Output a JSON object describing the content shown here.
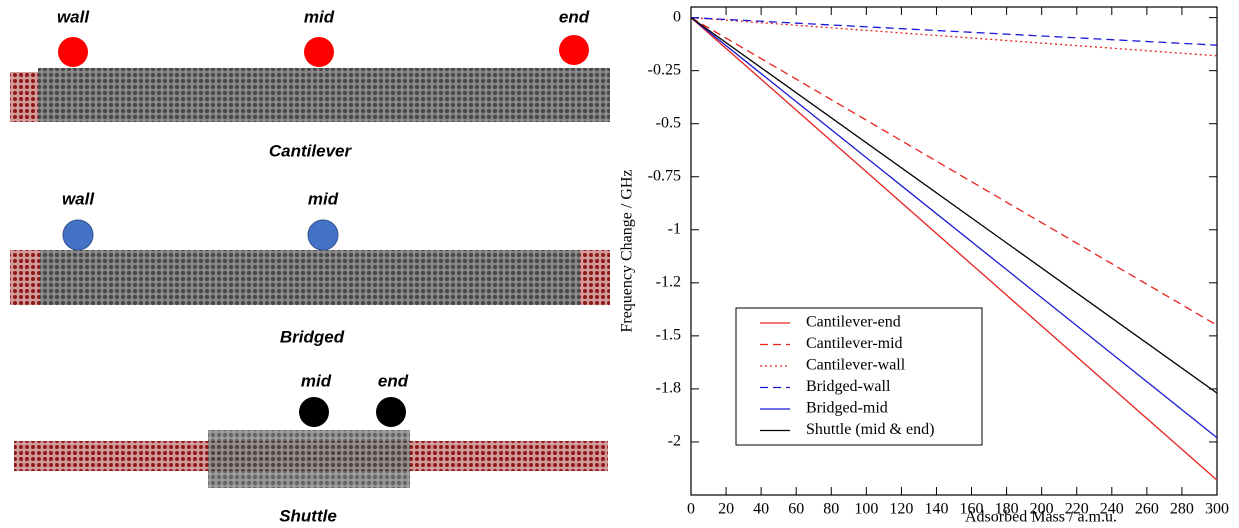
{
  "diagram": {
    "panels": [
      {
        "caption": "Cantilever",
        "labels": [
          "wall",
          "mid",
          "end"
        ]
      },
      {
        "caption": "Bridged",
        "labels": [
          "wall",
          "mid"
        ]
      },
      {
        "caption": "Shuttle",
        "labels": [
          "mid",
          "end"
        ]
      }
    ]
  },
  "chart_data": {
    "type": "line",
    "x_label": "Adsorbed Mass / a.m.u.",
    "y_label": "Frequency Change / GHz",
    "x": [
      0,
      300
    ],
    "series": [
      {
        "name": "Cantilever-end",
        "color": "#e8211c",
        "dash": "solid",
        "values": [
          0,
          -2.18
        ]
      },
      {
        "name": "Cantilever-mid",
        "color": "#e8211c",
        "dash": "dashed",
        "values": [
          0,
          -1.45
        ]
      },
      {
        "name": "Cantilever-wall",
        "color": "#e8211c",
        "dash": "dotted",
        "values": [
          0,
          -0.18
        ]
      },
      {
        "name": "Bridged-wall",
        "color": "#1a1ad6",
        "dash": "dashed",
        "values": [
          0,
          -0.13
        ]
      },
      {
        "name": "Bridged-mid",
        "color": "#1a1ad6",
        "dash": "solid",
        "values": [
          0,
          -1.98
        ]
      },
      {
        "name": "Shuttle (mid & end)",
        "color": "#000000",
        "dash": "solid",
        "values": [
          0,
          -1.77
        ]
      }
    ],
    "xlim": [
      0,
      300
    ],
    "ylim": [
      -2.25,
      0.05
    ],
    "xticks": [
      0,
      20,
      40,
      60,
      80,
      100,
      120,
      140,
      160,
      180,
      200,
      220,
      240,
      260,
      280,
      300
    ],
    "yticks": [
      0,
      -0.25,
      -0.5,
      -0.75,
      -1,
      {
        "value": -1.25,
        "label": "-1.2"
      },
      -1.5,
      {
        "value": -1.75,
        "label": "-1.8"
      },
      -2
    ],
    "legend": "lower left",
    "grid": false
  }
}
